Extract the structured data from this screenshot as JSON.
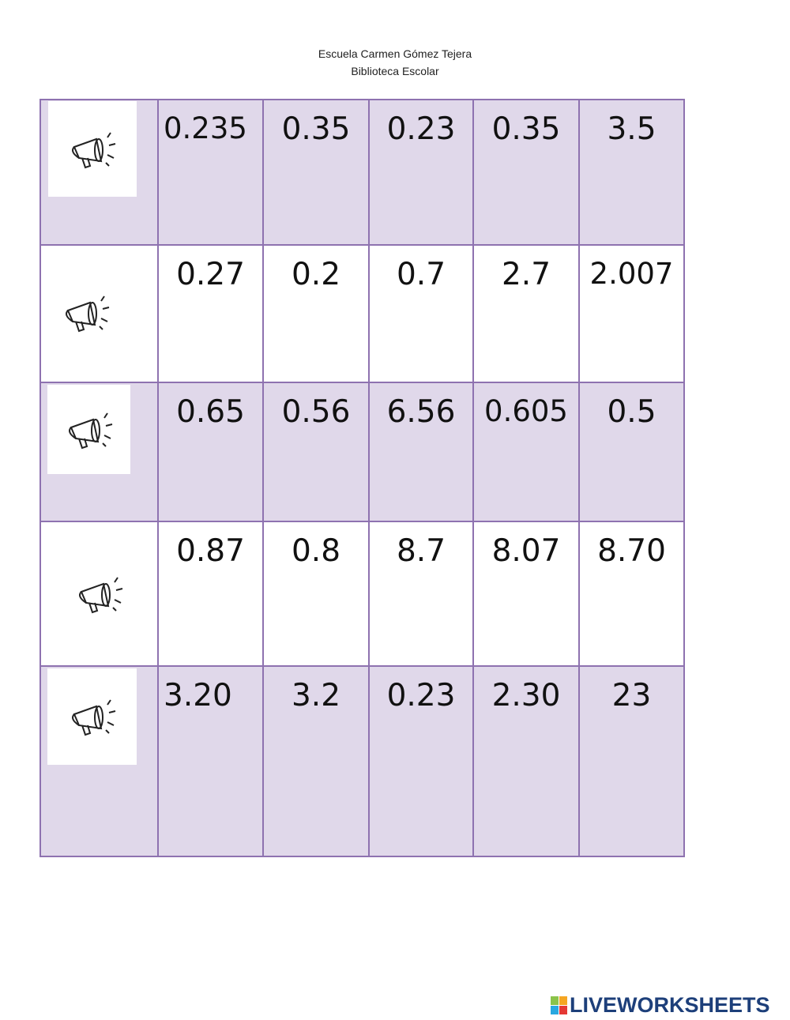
{
  "header": {
    "school": "Escuela Carmen Gómez Tejera",
    "library": "Biblioteca Escolar"
  },
  "rows": [
    {
      "values": [
        "0.235",
        "0.35",
        "0.23",
        "0.35",
        "3.5"
      ]
    },
    {
      "values": [
        "0.27",
        "0.2",
        "0.7",
        "2.7",
        "2.007"
      ]
    },
    {
      "values": [
        "0.65",
        "0.56",
        "6.56",
        "0.605",
        "0.5"
      ]
    },
    {
      "values": [
        "0.87",
        "0.8",
        "8.7",
        "8.07",
        "8.70"
      ]
    },
    {
      "values": [
        "3.20",
        "3.2",
        "0.23",
        "2.30",
        "23"
      ]
    }
  ],
  "row_icon": "megaphone-icon",
  "colors": {
    "purple_fill": "#e0d8ea",
    "border": "#8e72b0",
    "logo": "#1d3f7a"
  },
  "logo": {
    "text": "LIVEWORKSHEETS"
  }
}
